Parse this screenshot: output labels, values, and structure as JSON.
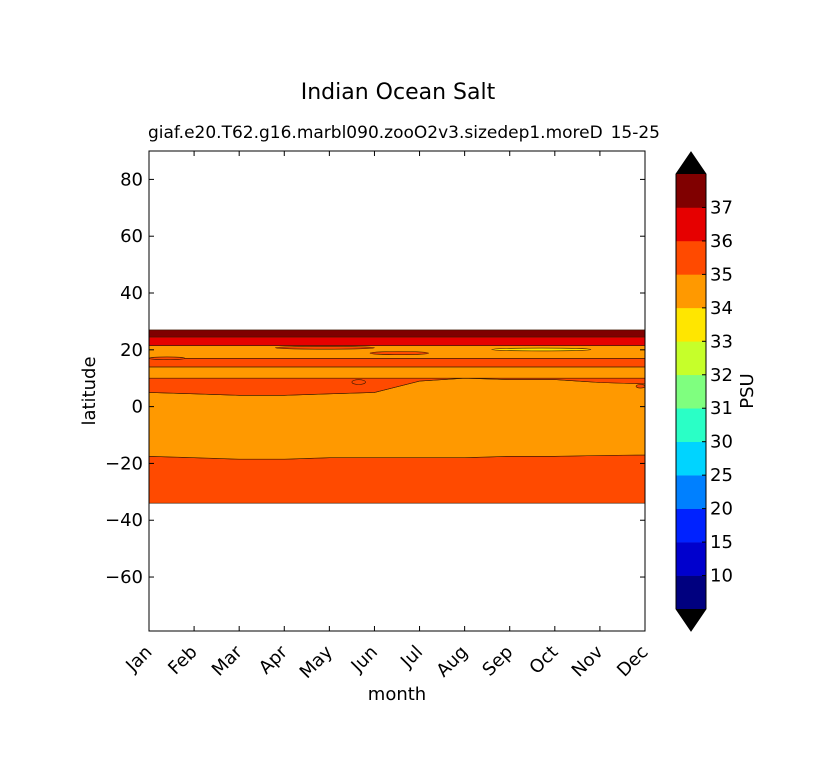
{
  "chart_data": {
    "type": "contour",
    "title": "Indian Ocean Salt",
    "subtitle_left": "giaf.e20.T62.g16.marbl090.zooO2v3.sizedep1.moreD",
    "subtitle_right": "15-25",
    "xlabel": "month",
    "ylabel": "latitude",
    "x_categories": [
      "Jan",
      "Feb",
      "Mar",
      "Apr",
      "May",
      "Jun",
      "Jul",
      "Aug",
      "Sep",
      "Oct",
      "Nov",
      "Dec"
    ],
    "x_positions": [
      0,
      1,
      2,
      3,
      4,
      5,
      6,
      7,
      8,
      9,
      10,
      11
    ],
    "xlim": [
      0,
      11
    ],
    "ylim": [
      -79,
      90
    ],
    "yticks": [
      80,
      60,
      40,
      20,
      0,
      -20,
      -40,
      -60
    ],
    "ytick_labels": [
      "80",
      "60",
      "40",
      "20",
      "0",
      "−20",
      "−40",
      "−60"
    ],
    "data_lat_range": [
      -34,
      27
    ],
    "bands": [
      {
        "name": "band-south-35",
        "bin": "35-36",
        "color": "#ff4a00",
        "lower": [
          -34,
          -34,
          -34,
          -34,
          -34,
          -34,
          -34,
          -34,
          -34,
          -34,
          -34,
          -34
        ],
        "upper": [
          -17.5,
          -18,
          -18.5,
          -18.5,
          -18,
          -18,
          -18,
          -18,
          -17.5,
          -17.5,
          -17.2,
          -17
        ]
      },
      {
        "name": "band-mid-34",
        "bin": "34-35",
        "color": "#ff9900",
        "lower": [
          -17.5,
          -18,
          -18.5,
          -18.5,
          -18,
          -18,
          -18,
          -18,
          -17.5,
          -17.5,
          -17.2,
          -17
        ],
        "upper": [
          5,
          4.5,
          4,
          4,
          4.5,
          5,
          9,
          10,
          9.5,
          9.5,
          8.5,
          8
        ]
      },
      {
        "name": "band-equator-35",
        "bin": "35-36",
        "color": "#ff4a00",
        "lower": [
          5,
          4.5,
          4,
          4,
          4.5,
          5,
          9,
          10,
          9.5,
          9.5,
          8.5,
          8
        ],
        "upper": [
          10,
          10,
          10,
          10,
          10,
          10,
          10,
          10,
          10,
          10,
          10,
          10
        ]
      },
      {
        "name": "band-north-34",
        "bin": "34-35",
        "color": "#ff9900",
        "lower": [
          10,
          10,
          10,
          10,
          10,
          10,
          10,
          10,
          10,
          10,
          10,
          10
        ],
        "upper": [
          14,
          14,
          14,
          14,
          14,
          14,
          14,
          14,
          14,
          14,
          14,
          14
        ]
      },
      {
        "name": "band-north-35",
        "bin": "35-36",
        "color": "#ff4a00",
        "lower": [
          14,
          14,
          14,
          14,
          14,
          14,
          14,
          14,
          14,
          14,
          14,
          14
        ],
        "upper": [
          17,
          17,
          17,
          17,
          17,
          17,
          17,
          17,
          17,
          17,
          17,
          17
        ]
      },
      {
        "name": "band-arabian-34",
        "bin": "34-35",
        "color": "#ff9900",
        "lower": [
          17,
          17,
          17,
          17,
          17,
          17,
          17,
          17,
          17,
          17,
          17,
          17
        ],
        "upper": [
          21.5,
          21.5,
          21.5,
          21.5,
          21.5,
          21.5,
          21.5,
          21.5,
          21.5,
          21.5,
          21.5,
          21.5
        ]
      },
      {
        "name": "band-gulf-36",
        "bin": "36-37",
        "color": "#e60000",
        "lower": [
          21.5,
          21.5,
          21.5,
          21.5,
          21.5,
          21.5,
          21.5,
          21.5,
          21.5,
          21.5,
          21.5,
          21.5
        ],
        "upper": [
          24.5,
          24.5,
          24.5,
          24.5,
          24.5,
          24.5,
          24.5,
          24.5,
          24.5,
          24.5,
          24.5,
          24.5
        ]
      },
      {
        "name": "band-gulf-37",
        "bin": ">37",
        "color": "#800000",
        "lower": [
          24.5,
          24.5,
          24.5,
          24.5,
          24.5,
          24.5,
          24.5,
          24.5,
          24.5,
          24.5,
          24.5,
          24.5
        ],
        "upper": [
          27,
          27,
          27,
          27,
          27,
          27,
          27,
          27,
          27,
          27,
          27,
          27
        ]
      }
    ],
    "patches": [
      {
        "name": "patch-low-33",
        "bin": "33-34",
        "color": "#ffe600",
        "x": [
          7.6,
          9.8
        ],
        "lat": [
          19.6,
          20.6
        ]
      },
      {
        "name": "patch-35-apr-may",
        "bin": "35-36",
        "color": "#ff4a00",
        "x": [
          2.8,
          5.0
        ],
        "lat": [
          20.2,
          21.2
        ]
      },
      {
        "name": "patch-35-jun-jul",
        "bin": "35-36",
        "color": "#ff4a00",
        "x": [
          4.9,
          6.2
        ],
        "lat": [
          18.3,
          19.4
        ]
      },
      {
        "name": "patch-35-jan",
        "bin": "35-36",
        "color": "#ff4a00",
        "x": [
          0.0,
          0.8
        ],
        "lat": [
          16.5,
          17.5
        ]
      },
      {
        "name": "patch-35-dec",
        "bin": "35-36",
        "color": "#ff4a00",
        "x": [
          10.8,
          11.0
        ],
        "lat": [
          6.5,
          7.8
        ]
      },
      {
        "name": "patch-35-may",
        "bin": "35-36",
        "color": "#ff4a00",
        "x": [
          4.5,
          4.8
        ],
        "lat": [
          7.8,
          9.5
        ]
      }
    ],
    "colorbar": {
      "label": "PSU",
      "levels": [
        10,
        15,
        20,
        25,
        30,
        31,
        32,
        33,
        34,
        35,
        36,
        37
      ],
      "tick_labels": [
        "10",
        "15",
        "20",
        "25",
        "30",
        "31",
        "32",
        "33",
        "34",
        "35",
        "36",
        "37"
      ],
      "colors": [
        "#00007f",
        "#0000cd",
        "#0022ff",
        "#0080ff",
        "#00d4ff",
        "#2affc6",
        "#7fff7f",
        "#c6ff2a",
        "#ffe600",
        "#ff9900",
        "#ff4a00",
        "#e60000",
        "#800000"
      ],
      "extend_low_color": "#000000",
      "extend_high_color": "#000000"
    }
  }
}
